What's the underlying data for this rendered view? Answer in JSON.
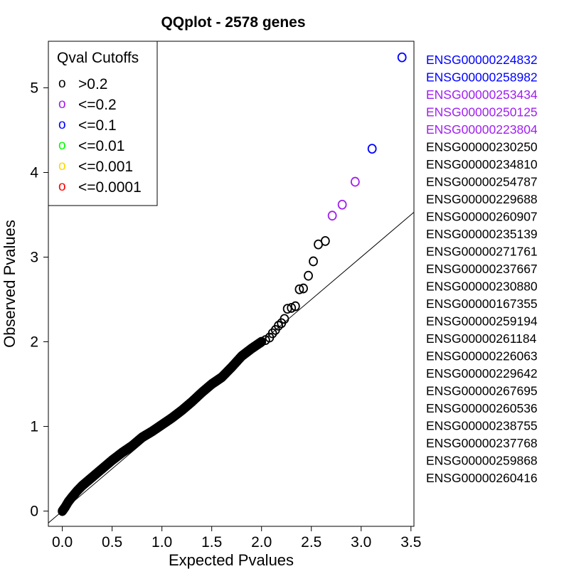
{
  "chart_data": {
    "type": "scatter",
    "title": "QQplot - 2578 genes",
    "xlabel": "Expected Pvalues",
    "ylabel": "Observed Pvalues",
    "xlim": [
      -0.14,
      3.53
    ],
    "ylim": [
      -0.18,
      5.55
    ],
    "xticks": [
      "0.0",
      "0.5",
      "1.0",
      "1.5",
      "2.0",
      "2.5",
      "3.0",
      "3.5"
    ],
    "xtick_values": [
      0,
      0.5,
      1.0,
      1.5,
      2.0,
      2.5,
      3.0,
      3.5
    ],
    "yticks": [
      "0",
      "1",
      "2",
      "3",
      "4",
      "5"
    ],
    "ytick_values": [
      0,
      1,
      2,
      3,
      4,
      5
    ],
    "reference_line": "y = x",
    "point_symbol": "o",
    "legend": {
      "title": "Qval Cutoffs",
      "position": "top-left",
      "entries": [
        {
          "label": ">0.2",
          "color": "#000000"
        },
        {
          "label": "<=0.2",
          "color": "#a020f0"
        },
        {
          "label": "<=0.1",
          "color": "#0000ff"
        },
        {
          "label": "<=0.01",
          "color": "#00ff00"
        },
        {
          "label": "<=0.001",
          "color": "#ffd700"
        },
        {
          "label": "<=0.0001",
          "color": "#ff0000"
        }
      ]
    },
    "colors": {
      "gt_0_2": "#000000",
      "le_0_2": "#a020f0",
      "le_0_1": "#0000ff"
    },
    "series": [
      {
        "category": "le_0_1",
        "x": [
          3.41,
          3.11
        ],
        "y": [
          5.36,
          4.28
        ]
      },
      {
        "category": "le_0_2",
        "x": [
          2.94,
          2.81,
          2.71
        ],
        "y": [
          3.89,
          3.62,
          3.49
        ]
      },
      {
        "category": "gt_0_2",
        "curve": [
          [
            0.0,
            0.0
          ],
          [
            0.03,
            0.05
          ],
          [
            0.06,
            0.11
          ],
          [
            0.1,
            0.17
          ],
          [
            0.15,
            0.24
          ],
          [
            0.2,
            0.3
          ],
          [
            0.3,
            0.4
          ],
          [
            0.4,
            0.5
          ],
          [
            0.5,
            0.6
          ],
          [
            0.6,
            0.69
          ],
          [
            0.7,
            0.77
          ],
          [
            0.8,
            0.87
          ],
          [
            0.9,
            0.94
          ],
          [
            1.0,
            1.02
          ],
          [
            1.1,
            1.1
          ],
          [
            1.2,
            1.19
          ],
          [
            1.3,
            1.29
          ],
          [
            1.4,
            1.4
          ],
          [
            1.5,
            1.5
          ],
          [
            1.6,
            1.58
          ],
          [
            1.7,
            1.7
          ],
          [
            1.8,
            1.83
          ],
          [
            1.9,
            1.92
          ],
          [
            2.0,
            2.0
          ]
        ],
        "x": [
          2.04,
          2.08,
          2.11,
          2.14,
          2.17,
          2.2,
          2.23,
          2.26,
          2.3,
          2.34,
          2.38,
          2.42,
          2.47,
          2.52,
          2.57,
          2.64
        ],
        "y": [
          2.02,
          2.05,
          2.1,
          2.14,
          2.19,
          2.22,
          2.27,
          2.39,
          2.4,
          2.42,
          2.62,
          2.63,
          2.78,
          2.95,
          3.15,
          3.19
        ]
      }
    ]
  },
  "gene_labels": [
    {
      "text": "ENSG00000224832",
      "color": "#0000ff"
    },
    {
      "text": "ENSG00000258982",
      "color": "#0000ff"
    },
    {
      "text": "ENSG00000253434",
      "color": "#a020f0"
    },
    {
      "text": "ENSG00000250125",
      "color": "#a020f0"
    },
    {
      "text": "ENSG00000223804",
      "color": "#a020f0"
    },
    {
      "text": "ENSG00000230250",
      "color": "#000000"
    },
    {
      "text": "ENSG00000234810",
      "color": "#000000"
    },
    {
      "text": "ENSG00000254787",
      "color": "#000000"
    },
    {
      "text": "ENSG00000229688",
      "color": "#000000"
    },
    {
      "text": "ENSG00000260907",
      "color": "#000000"
    },
    {
      "text": "ENSG00000235139",
      "color": "#000000"
    },
    {
      "text": "ENSG00000271761",
      "color": "#000000"
    },
    {
      "text": "ENSG00000237667",
      "color": "#000000"
    },
    {
      "text": "ENSG00000230880",
      "color": "#000000"
    },
    {
      "text": "ENSG00000167355",
      "color": "#000000"
    },
    {
      "text": "ENSG00000259194",
      "color": "#000000"
    },
    {
      "text": "ENSG00000261184",
      "color": "#000000"
    },
    {
      "text": "ENSG00000226063",
      "color": "#000000"
    },
    {
      "text": "ENSG00000229642",
      "color": "#000000"
    },
    {
      "text": "ENSG00000267695",
      "color": "#000000"
    },
    {
      "text": "ENSG00000260536",
      "color": "#000000"
    },
    {
      "text": "ENSG00000238755",
      "color": "#000000"
    },
    {
      "text": "ENSG00000237768",
      "color": "#000000"
    },
    {
      "text": "ENSG00000259868",
      "color": "#000000"
    },
    {
      "text": "ENSG00000260416",
      "color": "#000000"
    }
  ]
}
